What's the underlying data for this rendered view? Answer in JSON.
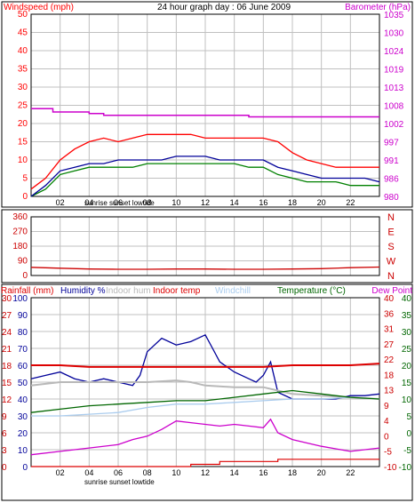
{
  "colors": {
    "frame": "#000000",
    "grid": "#c0c0c0",
    "windspeed": "#ff0000",
    "gust": "#ff0000",
    "avg_wind": "#008000",
    "barometer": "#cc00cc",
    "wind_dir": "#cc0000",
    "humidity": "#000099",
    "indoor_hum": "#b8b8b8",
    "indoor_temp": "#dd0000",
    "windchill": "#aaccee",
    "temperature": "#006600",
    "dew_point": "#cc00cc",
    "rainfall": "#dd0000",
    "rain_axis": "#cc0000",
    "temp_axis": "#006600"
  },
  "chart_data": [
    {
      "type": "line",
      "title": "24 hour graph day : 06 June 2009",
      "left_axis_label": "Windspeed (mph)",
      "right_axis_label": "Barometer (hPa)",
      "x_ticks": [
        "02",
        "04",
        "06",
        "08",
        "10",
        "12",
        "14",
        "16",
        "18",
        "20",
        "22"
      ],
      "x_annotation": "sunrise sunset lowtide",
      "left_ticks": [
        "0",
        "5",
        "10",
        "15",
        "20",
        "25",
        "30",
        "35",
        "40",
        "45",
        "50"
      ],
      "right_ticks": [
        "980",
        "986",
        "991",
        "997",
        "1002",
        "1008",
        "1013",
        "1019",
        "1024",
        "1030",
        "1035"
      ],
      "ylim_left": [
        0,
        50
      ],
      "ylim_right": [
        980,
        1035
      ],
      "series": [
        {
          "key": "gust",
          "hours": [
            0,
            1,
            2,
            3,
            4,
            5,
            6,
            7,
            8,
            9,
            10,
            11,
            12,
            13,
            14,
            15,
            16,
            17,
            18,
            19,
            20,
            21,
            22,
            23,
            24
          ],
          "values": [
            2,
            5,
            10,
            13,
            15,
            16,
            15,
            16,
            17,
            17,
            17,
            17,
            16,
            16,
            16,
            16,
            16,
            15,
            12,
            10,
            9,
            8,
            8,
            8,
            8
          ]
        },
        {
          "key": "avg_wind",
          "hours": [
            0,
            1,
            2,
            3,
            4,
            5,
            6,
            7,
            8,
            9,
            10,
            11,
            12,
            13,
            14,
            15,
            16,
            17,
            18,
            19,
            20,
            21,
            22,
            23,
            24
          ],
          "values": [
            0,
            2,
            6,
            7,
            8,
            8,
            8,
            8,
            9,
            9,
            9,
            9,
            9,
            9,
            9,
            8,
            8,
            6,
            5,
            4,
            4,
            4,
            3,
            3,
            3
          ]
        },
        {
          "key": "wind_blue",
          "hours": [
            0,
            1,
            2,
            3,
            4,
            5,
            6,
            7,
            8,
            9,
            10,
            11,
            12,
            13,
            14,
            15,
            16,
            17,
            18,
            19,
            20,
            21,
            22,
            23,
            24
          ],
          "values": [
            0,
            3,
            7,
            8,
            9,
            9,
            10,
            10,
            10,
            10,
            11,
            11,
            11,
            10,
            10,
            10,
            10,
            8,
            7,
            6,
            5,
            5,
            5,
            5,
            4
          ]
        },
        {
          "key": "barometer",
          "hours": [
            0,
            1,
            1.5,
            3,
            4,
            5,
            6,
            7,
            8,
            9,
            10,
            11,
            12,
            13,
            14,
            15,
            16,
            17,
            18,
            19,
            20,
            21,
            22,
            23,
            24
          ],
          "values": [
            1006.5,
            1006.5,
            1005.5,
            1005.5,
            1005,
            1004.5,
            1004.5,
            1004.5,
            1004.5,
            1004.5,
            1004.5,
            1004.5,
            1004.5,
            1004.5,
            1004.5,
            1004,
            1004,
            1004,
            1004,
            1004,
            1004,
            1004,
            1004,
            1004,
            1004
          ]
        }
      ]
    },
    {
      "type": "line",
      "right_ticks": [
        "N",
        "W",
        "S",
        "E",
        "N"
      ],
      "left_ticks": [
        "0",
        "90",
        "180",
        "270",
        "360"
      ],
      "ylim": [
        0,
        360
      ],
      "series": [
        {
          "key": "wind_dir",
          "hours": [
            0,
            2,
            4,
            6,
            8,
            10,
            12,
            14,
            16,
            18,
            20,
            22,
            24
          ],
          "values": [
            50,
            45,
            40,
            38,
            38,
            40,
            40,
            38,
            38,
            40,
            42,
            48,
            52
          ]
        }
      ]
    },
    {
      "type": "line",
      "legend": [
        "Rainfall (mm)",
        "Humidity %",
        "Indoor hum",
        "Indoor temp",
        "Windchill",
        "Temperature (°C)",
        "Dew Point"
      ],
      "x_ticks": [
        "02",
        "04",
        "06",
        "08",
        "10",
        "12",
        "14",
        "16",
        "18",
        "20",
        "22"
      ],
      "x_annotation": "sunrise sunset lowtide",
      "rain_ticks": [
        "0",
        "3",
        "6",
        "9",
        "12",
        "15",
        "18",
        "21",
        "24",
        "27",
        "30"
      ],
      "humidity_ticks": [
        "0",
        "10",
        "20",
        "30",
        "40",
        "50",
        "60",
        "70",
        "80",
        "90",
        "100"
      ],
      "temp_ticks_a": [
        "-10",
        "-5",
        "0",
        "4",
        "9",
        "13",
        "18",
        "22",
        "27",
        "31",
        "36",
        "40"
      ],
      "temp_ticks_b": [
        "-10",
        "-5",
        "0",
        "5",
        "10",
        "15",
        "20",
        "25",
        "30",
        "35",
        "40"
      ],
      "ylim_humidity": [
        0,
        100
      ],
      "ylim_rain": [
        0,
        30
      ],
      "series": [
        {
          "key": "humidity",
          "hours": [
            0,
            1,
            2,
            3,
            4,
            5,
            6,
            7,
            7.5,
            8,
            9,
            10,
            11,
            12,
            12.5,
            13,
            14,
            15,
            15.5,
            16,
            16.5,
            17,
            18,
            19,
            20,
            21,
            22,
            23,
            24
          ],
          "values": [
            52,
            54,
            56,
            52,
            50,
            52,
            50,
            48,
            54,
            68,
            76,
            72,
            74,
            78,
            70,
            62,
            56,
            52,
            50,
            54,
            62,
            44,
            40,
            40,
            40,
            40,
            42,
            42,
            43
          ]
        },
        {
          "key": "indoor_hum",
          "hours": [
            0,
            2,
            4,
            6,
            8,
            10,
            11,
            12,
            14,
            16,
            17,
            18,
            20,
            22,
            24
          ],
          "values": [
            48,
            50,
            50,
            50,
            50,
            51,
            50,
            48,
            47,
            47,
            45,
            43,
            42,
            41,
            40
          ]
        },
        {
          "key": "indoor_temp",
          "hours": [
            0,
            2,
            4,
            6,
            8,
            10,
            12,
            14,
            16,
            18,
            20,
            22,
            24
          ],
          "values": [
            60,
            60,
            59,
            59,
            59,
            59,
            59,
            59,
            59,
            60,
            60,
            60,
            61
          ]
        },
        {
          "key": "windchill",
          "hours": [
            0,
            2,
            4,
            6,
            8,
            10,
            12,
            14,
            16,
            18,
            20,
            22,
            24
          ],
          "values": [
            30,
            30,
            31,
            32,
            35,
            37,
            37,
            38,
            39,
            40,
            40,
            41,
            40
          ]
        },
        {
          "key": "temperature",
          "hours": [
            0,
            2,
            4,
            6,
            8,
            10,
            12,
            14,
            16,
            18,
            20,
            22,
            24
          ],
          "values": [
            32,
            34,
            36,
            37,
            38,
            39,
            39,
            41,
            43,
            45,
            43,
            41,
            40
          ]
        },
        {
          "key": "dew_point",
          "hours": [
            0,
            2,
            4,
            6,
            7,
            8,
            9,
            10,
            11,
            12,
            13,
            14,
            15,
            16,
            16.5,
            17,
            18,
            20,
            22,
            24
          ],
          "values": [
            7,
            9,
            11,
            13,
            16,
            18,
            22,
            27,
            26,
            25,
            24,
            25,
            24,
            23,
            28,
            20,
            16,
            12,
            9,
            11
          ]
        },
        {
          "key": "rainfall",
          "hours": [
            0,
            11,
            11,
            13,
            13,
            17,
            17,
            24
          ],
          "values": [
            0,
            0,
            0.4,
            0.4,
            0.9,
            0.9,
            1.3,
            1.3
          ]
        }
      ]
    }
  ]
}
